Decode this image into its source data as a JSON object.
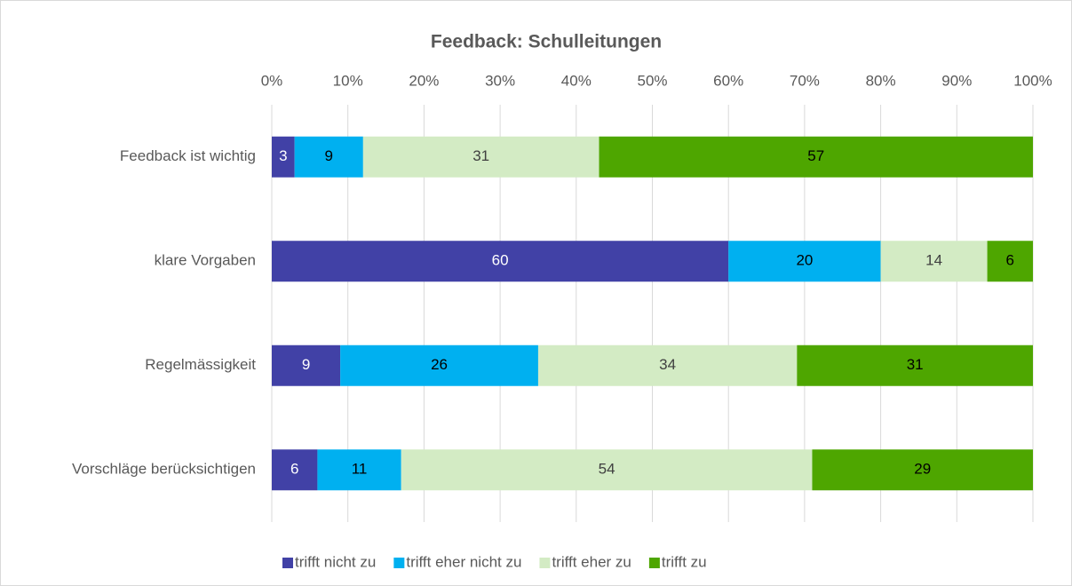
{
  "chart_data": {
    "type": "stacked_barh",
    "title": "Feedback: Schulleitungen",
    "categories": [
      "Feedback ist wichtig",
      "klare Vorgaben",
      "Regelmässigkeit",
      "Vorschläge berücksichtigen"
    ],
    "series": [
      {
        "name": "trifft nicht zu",
        "color": "#4141a6",
        "values": [
          3,
          60,
          9,
          6
        ]
      },
      {
        "name": "trifft eher nicht zu",
        "color": "#00b0f0",
        "values": [
          9,
          20,
          26,
          11
        ]
      },
      {
        "name": "trifft eher zu",
        "color": "#d3ebc4",
        "values": [
          31,
          14,
          34,
          54
        ]
      },
      {
        "name": "trifft zu",
        "color": "#4ea600",
        "values": [
          57,
          6,
          31,
          29
        ]
      }
    ],
    "xlim": [
      0,
      100
    ],
    "xticks": [
      {
        "value": 0,
        "label": "0%"
      },
      {
        "value": 10,
        "label": "10%"
      },
      {
        "value": 20,
        "label": "20%"
      },
      {
        "value": 30,
        "label": "30%"
      },
      {
        "value": 40,
        "label": "40%"
      },
      {
        "value": 50,
        "label": "50%"
      },
      {
        "value": 60,
        "label": "60%"
      },
      {
        "value": 70,
        "label": "70%"
      },
      {
        "value": 80,
        "label": "80%"
      },
      {
        "value": 90,
        "label": "90%"
      },
      {
        "value": 100,
        "label": "100%"
      }
    ],
    "grid": true,
    "legend": "bottom"
  }
}
